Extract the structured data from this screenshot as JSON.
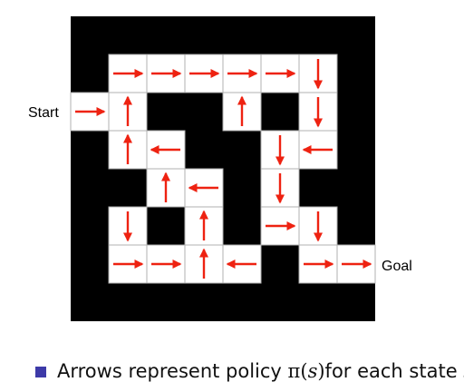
{
  "labels": {
    "start": "Start",
    "goal": "Goal"
  },
  "caption": {
    "prefix": "Arrows represent policy ",
    "pi": "π",
    "open": "(",
    "state_var": "s",
    "close": ")",
    "suffix": " for each state ",
    "end_var": "s"
  },
  "colors": {
    "wall": "#000000",
    "cell": "#ffffff",
    "grid": "#b0b0b0",
    "arrow": "#ee2211",
    "bullet": "#3d3aa8"
  },
  "maze": {
    "cells": [
      {
        "row": 1,
        "col": 1,
        "dir": "right"
      },
      {
        "row": 1,
        "col": 2,
        "dir": "right"
      },
      {
        "row": 1,
        "col": 3,
        "dir": "right"
      },
      {
        "row": 1,
        "col": 4,
        "dir": "right"
      },
      {
        "row": 1,
        "col": 5,
        "dir": "right"
      },
      {
        "row": 1,
        "col": 6,
        "dir": "down"
      },
      {
        "row": 2,
        "col": 0,
        "dir": "right"
      },
      {
        "row": 2,
        "col": 1,
        "dir": "up"
      },
      {
        "row": 2,
        "col": 4,
        "dir": "up"
      },
      {
        "row": 2,
        "col": 6,
        "dir": "down"
      },
      {
        "row": 3,
        "col": 1,
        "dir": "up"
      },
      {
        "row": 3,
        "col": 2,
        "dir": "left"
      },
      {
        "row": 3,
        "col": 5,
        "dir": "down"
      },
      {
        "row": 3,
        "col": 6,
        "dir": "left"
      },
      {
        "row": 4,
        "col": 2,
        "dir": "up"
      },
      {
        "row": 4,
        "col": 3,
        "dir": "left"
      },
      {
        "row": 4,
        "col": 5,
        "dir": "down"
      },
      {
        "row": 5,
        "col": 1,
        "dir": "down"
      },
      {
        "row": 5,
        "col": 3,
        "dir": "up"
      },
      {
        "row": 5,
        "col": 5,
        "dir": "right"
      },
      {
        "row": 5,
        "col": 6,
        "dir": "down"
      },
      {
        "row": 6,
        "col": 1,
        "dir": "right"
      },
      {
        "row": 6,
        "col": 2,
        "dir": "right"
      },
      {
        "row": 6,
        "col": 3,
        "dir": "up"
      },
      {
        "row": 6,
        "col": 4,
        "dir": "left"
      },
      {
        "row": 6,
        "col": 6,
        "dir": "right"
      },
      {
        "row": 6,
        "col": 7,
        "dir": "right"
      }
    ]
  }
}
